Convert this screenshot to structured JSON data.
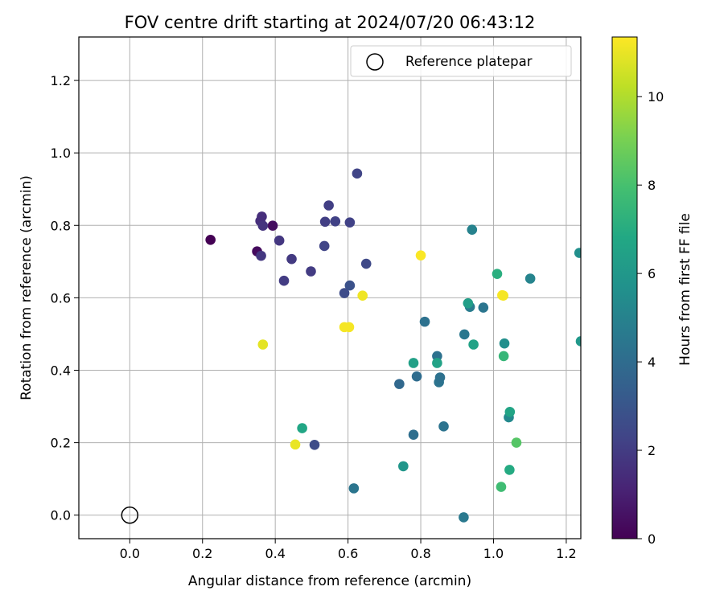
{
  "chart_data": {
    "type": "scatter",
    "title": "FOV centre drift starting at 2024/07/20 06:43:12",
    "xlabel": "Angular distance from reference (arcmin)",
    "ylabel": "Rotation from reference (arcmin)",
    "xlim": [
      -0.14,
      1.24
    ],
    "ylim": [
      -0.065,
      1.32
    ],
    "xticks": [
      "0.0",
      "0.2",
      "0.4",
      "0.6",
      "0.8",
      "1.0",
      "1.2"
    ],
    "yticks": [
      "0.0",
      "0.2",
      "0.4",
      "0.6",
      "0.8",
      "1.0",
      "1.2"
    ],
    "grid": true,
    "legend": {
      "placement": "top-right",
      "entries": [
        "Reference platepar"
      ]
    },
    "reference_point": {
      "x": 0.0,
      "y": 0.0
    },
    "colorbar": {
      "label": "Hours from first FF file",
      "min": 0,
      "max": 11.35,
      "ticks": [
        "0",
        "2",
        "4",
        "6",
        "8",
        "10"
      ],
      "colormap": "viridis"
    },
    "points": [
      {
        "x": 0.222,
        "y": 0.76,
        "c": 0.0
      },
      {
        "x": 0.35,
        "y": 0.728,
        "c": 0.3
      },
      {
        "x": 0.393,
        "y": 0.799,
        "c": 0.4
      },
      {
        "x": 0.363,
        "y": 0.824,
        "c": 1.5
      },
      {
        "x": 0.359,
        "y": 0.812,
        "c": 1.5
      },
      {
        "x": 0.366,
        "y": 0.799,
        "c": 1.7
      },
      {
        "x": 0.361,
        "y": 0.716,
        "c": 1.8
      },
      {
        "x": 0.411,
        "y": 0.758,
        "c": 1.8
      },
      {
        "x": 0.445,
        "y": 0.707,
        "c": 1.9
      },
      {
        "x": 0.424,
        "y": 0.647,
        "c": 2.0
      },
      {
        "x": 0.498,
        "y": 0.673,
        "c": 2.0
      },
      {
        "x": 0.537,
        "y": 0.81,
        "c": 2.1
      },
      {
        "x": 0.547,
        "y": 0.855,
        "c": 2.1
      },
      {
        "x": 0.565,
        "y": 0.811,
        "c": 2.2
      },
      {
        "x": 0.605,
        "y": 0.808,
        "c": 2.2
      },
      {
        "x": 0.625,
        "y": 0.943,
        "c": 2.3
      },
      {
        "x": 0.535,
        "y": 0.743,
        "c": 2.3
      },
      {
        "x": 0.65,
        "y": 0.694,
        "c": 2.5
      },
      {
        "x": 0.59,
        "y": 0.613,
        "c": 2.6
      },
      {
        "x": 0.605,
        "y": 0.634,
        "c": 2.8
      },
      {
        "x": 0.508,
        "y": 0.194,
        "c": 2.6
      },
      {
        "x": 0.741,
        "y": 0.362,
        "c": 3.8
      },
      {
        "x": 0.78,
        "y": 0.222,
        "c": 4.1
      },
      {
        "x": 0.789,
        "y": 0.383,
        "c": 4.0
      },
      {
        "x": 0.811,
        "y": 0.534,
        "c": 4.2
      },
      {
        "x": 0.845,
        "y": 0.439,
        "c": 4.2
      },
      {
        "x": 0.85,
        "y": 0.367,
        "c": 4.3
      },
      {
        "x": 0.853,
        "y": 0.38,
        "c": 4.2
      },
      {
        "x": 0.863,
        "y": 0.245,
        "c": 4.3
      },
      {
        "x": 0.616,
        "y": 0.074,
        "c": 4.4
      },
      {
        "x": 0.918,
        "y": -0.006,
        "c": 4.6
      },
      {
        "x": 0.92,
        "y": 0.499,
        "c": 4.5
      },
      {
        "x": 0.972,
        "y": 0.573,
        "c": 4.4
      },
      {
        "x": 0.935,
        "y": 0.575,
        "c": 4.7
      },
      {
        "x": 0.941,
        "y": 0.788,
        "c": 5.0
      },
      {
        "x": 1.101,
        "y": 0.653,
        "c": 5.1
      },
      {
        "x": 1.042,
        "y": 0.27,
        "c": 5.3
      },
      {
        "x": 1.03,
        "y": 0.474,
        "c": 5.6
      },
      {
        "x": 1.236,
        "y": 0.724,
        "c": 5.6
      },
      {
        "x": 1.24,
        "y": 0.48,
        "c": 6.0
      },
      {
        "x": 0.752,
        "y": 0.135,
        "c": 5.9
      },
      {
        "x": 0.78,
        "y": 0.42,
        "c": 6.4
      },
      {
        "x": 0.845,
        "y": 0.42,
        "c": 6.5
      },
      {
        "x": 0.93,
        "y": 0.585,
        "c": 6.3
      },
      {
        "x": 0.945,
        "y": 0.471,
        "c": 6.5
      },
      {
        "x": 1.045,
        "y": 0.285,
        "c": 6.6
      },
      {
        "x": 1.044,
        "y": 0.125,
        "c": 6.9
      },
      {
        "x": 0.474,
        "y": 0.24,
        "c": 6.7
      },
      {
        "x": 1.01,
        "y": 0.666,
        "c": 7.1
      },
      {
        "x": 1.028,
        "y": 0.439,
        "c": 7.5
      },
      {
        "x": 1.021,
        "y": 0.078,
        "c": 7.8
      },
      {
        "x": 1.063,
        "y": 0.2,
        "c": 8.3
      },
      {
        "x": 0.366,
        "y": 0.471,
        "c": 10.9
      },
      {
        "x": 0.455,
        "y": 0.195,
        "c": 11.0
      },
      {
        "x": 0.59,
        "y": 0.519,
        "c": 11.2
      },
      {
        "x": 0.603,
        "y": 0.519,
        "c": 11.2
      },
      {
        "x": 0.64,
        "y": 0.606,
        "c": 11.1
      },
      {
        "x": 0.8,
        "y": 0.717,
        "c": 11.3
      },
      {
        "x": 1.024,
        "y": 0.607,
        "c": 11.3
      },
      {
        "x": 1.027,
        "y": 0.606,
        "c": 11.2
      }
    ]
  }
}
